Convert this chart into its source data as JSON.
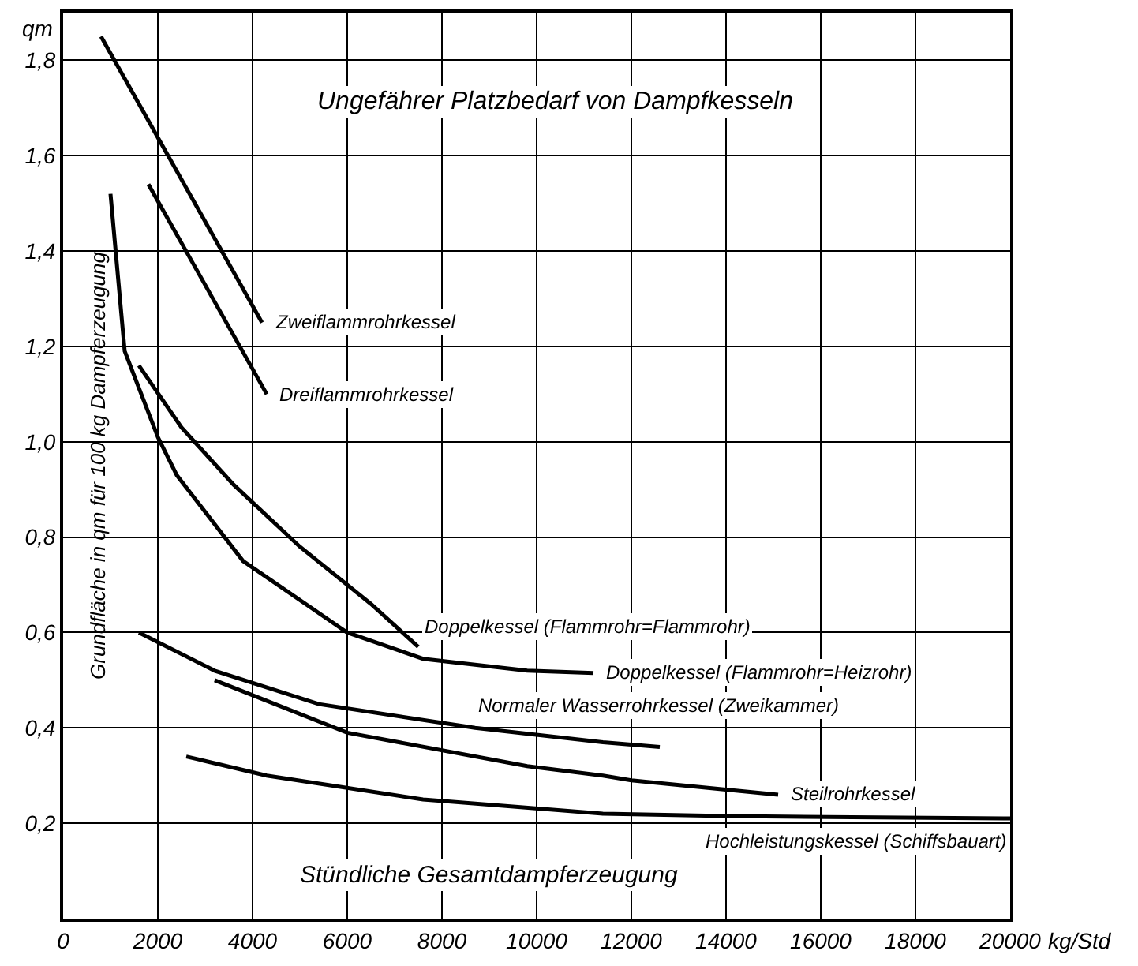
{
  "chart_data": {
    "type": "line",
    "title": "Ungefährer Platzbedarf von Dampfkesseln",
    "xlabel": "Stündliche Gesamtdampferzeugung",
    "ylabel": "Grundfläche in qm für 100 kg Dampferzeugung",
    "annotations": [
      "qm",
      "kg/Std"
    ],
    "xlim": [
      0,
      20000
    ],
    "ylim": [
      0,
      1.9
    ],
    "xticks": [
      0,
      2000,
      4000,
      6000,
      8000,
      10000,
      12000,
      14000,
      16000,
      18000,
      20000
    ],
    "yticks": [
      {
        "value": 0.2,
        "label": "0,2"
      },
      {
        "value": 0.4,
        "label": "0,4"
      },
      {
        "value": 0.6,
        "label": "0,6"
      },
      {
        "value": 0.8,
        "label": "0,8"
      },
      {
        "value": 1.0,
        "label": "1,0"
      },
      {
        "value": 1.2,
        "label": "1,2"
      },
      {
        "value": 1.4,
        "label": "1,4"
      },
      {
        "value": 1.6,
        "label": "1,6"
      },
      {
        "value": 1.8,
        "label": "1,8"
      }
    ],
    "grid": true,
    "legend": false,
    "marker": "none",
    "line_style": "solid",
    "series": [
      {
        "name": "Zweiflammrohrkessel",
        "color": "#000000",
        "x": [
          800,
          4200
        ],
        "values": [
          1.85,
          1.25
        ]
      },
      {
        "name": "Dreiflammrohrkessel",
        "color": "#000000",
        "x": [
          1800,
          4300
        ],
        "values": [
          1.54,
          1.1
        ]
      },
      {
        "name": "Doppelkessel (Flammrohr=Flammrohr)",
        "color": "#000000",
        "x": [
          1600,
          2500,
          3600,
          5000,
          6500,
          7500
        ],
        "values": [
          1.16,
          1.03,
          0.91,
          0.78,
          0.66,
          0.57
        ]
      },
      {
        "name": "Doppelkessel (Flammrohr=Heizrohr)",
        "color": "#000000",
        "x": [
          1000,
          1300,
          2000,
          2400,
          3800,
          6000,
          7600,
          9800,
          11200
        ],
        "values": [
          1.52,
          1.19,
          1.01,
          0.93,
          0.75,
          0.6,
          0.545,
          0.52,
          0.515
        ]
      },
      {
        "name": "Normaler Wasserrohrkessel (Zweikammer)",
        "color": "#000000",
        "x": [
          1600,
          3200,
          5400,
          8700,
          11400,
          12600
        ],
        "values": [
          0.6,
          0.52,
          0.45,
          0.4,
          0.37,
          0.36
        ]
      },
      {
        "name": "Steilrohrkessel",
        "color": "#000000",
        "x": [
          3200,
          6000,
          9800,
          11400,
          12000,
          15100
        ],
        "values": [
          0.5,
          0.39,
          0.32,
          0.3,
          0.29,
          0.26
        ]
      },
      {
        "name": "Hochleistungskessel (Schiffsbauart)",
        "color": "#000000",
        "x": [
          2600,
          4300,
          7600,
          11400,
          14000,
          20000
        ],
        "values": [
          0.34,
          0.3,
          0.25,
          0.22,
          0.215,
          0.21
        ]
      }
    ]
  }
}
